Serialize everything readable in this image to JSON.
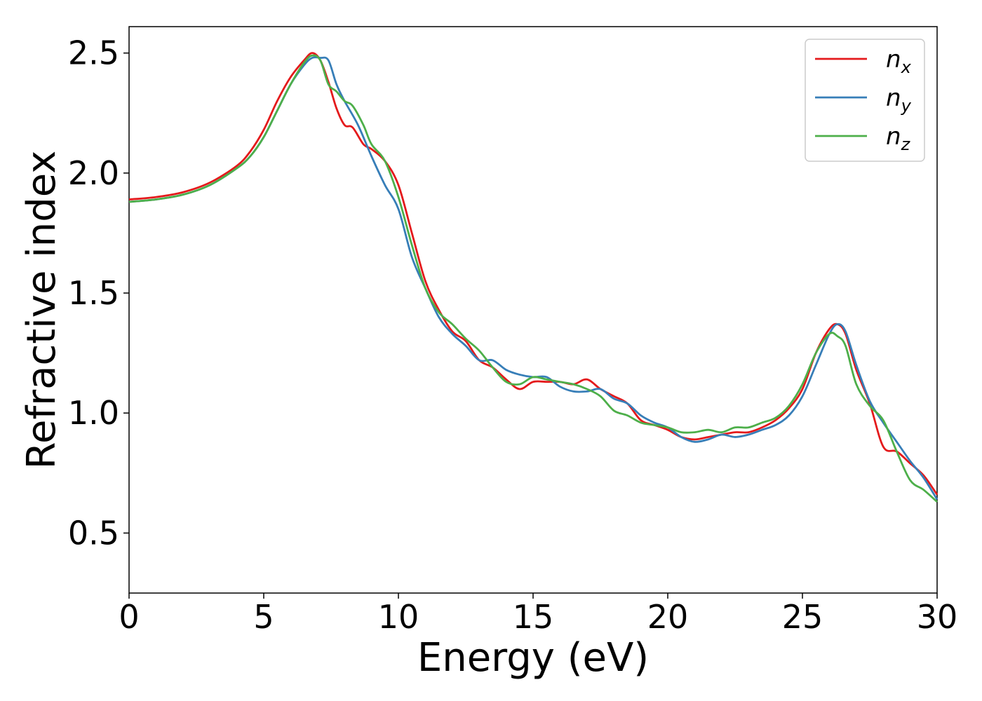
{
  "chart_data": {
    "type": "line",
    "title": "",
    "xlabel": "Energy (eV)",
    "ylabel": "Refractive index",
    "xlim": [
      0,
      30
    ],
    "ylim": [
      0.25,
      2.61
    ],
    "xticks": [
      0,
      5,
      10,
      15,
      20,
      25,
      30
    ],
    "xtick_labels": [
      "0",
      "5",
      "10",
      "15",
      "20",
      "25",
      "30"
    ],
    "yticks": [
      0.5,
      1.0,
      1.5,
      2.0,
      2.5
    ],
    "ytick_labels": [
      "0.5",
      "1.0",
      "1.5",
      "2.0",
      "2.5"
    ],
    "grid": false,
    "legend": {
      "placement": "top-right"
    },
    "series": [
      {
        "name": "n_x",
        "label_base": "n",
        "label_sub": "x",
        "color": "#e41a1c",
        "points": [
          [
            0,
            1.89
          ],
          [
            1,
            1.9
          ],
          [
            2,
            1.92
          ],
          [
            3,
            1.96
          ],
          [
            4,
            2.03
          ],
          [
            4.5,
            2.09
          ],
          [
            5,
            2.18
          ],
          [
            5.5,
            2.3
          ],
          [
            6,
            2.4
          ],
          [
            6.5,
            2.47
          ],
          [
            6.8,
            2.5
          ],
          [
            7.1,
            2.47
          ],
          [
            7.4,
            2.38
          ],
          [
            7.7,
            2.27
          ],
          [
            8,
            2.2
          ],
          [
            8.3,
            2.19
          ],
          [
            8.7,
            2.12
          ],
          [
            9,
            2.1
          ],
          [
            9.5,
            2.05
          ],
          [
            10,
            1.95
          ],
          [
            10.5,
            1.75
          ],
          [
            11,
            1.55
          ],
          [
            11.5,
            1.43
          ],
          [
            12,
            1.34
          ],
          [
            12.5,
            1.3
          ],
          [
            13,
            1.22
          ],
          [
            13.5,
            1.19
          ],
          [
            14,
            1.14
          ],
          [
            14.5,
            1.1
          ],
          [
            15,
            1.13
          ],
          [
            15.5,
            1.13
          ],
          [
            16,
            1.13
          ],
          [
            16.5,
            1.12
          ],
          [
            17,
            1.14
          ],
          [
            17.5,
            1.1
          ],
          [
            18,
            1.07
          ],
          [
            18.5,
            1.04
          ],
          [
            19,
            0.97
          ],
          [
            19.5,
            0.95
          ],
          [
            20,
            0.93
          ],
          [
            20.5,
            0.9
          ],
          [
            21,
            0.89
          ],
          [
            21.5,
            0.9
          ],
          [
            22,
            0.91
          ],
          [
            22.5,
            0.92
          ],
          [
            23,
            0.92
          ],
          [
            23.5,
            0.94
          ],
          [
            24,
            0.97
          ],
          [
            24.5,
            1.02
          ],
          [
            25,
            1.1
          ],
          [
            25.5,
            1.25
          ],
          [
            26,
            1.35
          ],
          [
            26.3,
            1.37
          ],
          [
            26.6,
            1.33
          ],
          [
            27,
            1.18
          ],
          [
            27.5,
            1.04
          ],
          [
            28,
            0.86
          ],
          [
            28.5,
            0.84
          ],
          [
            29,
            0.79
          ],
          [
            29.5,
            0.74
          ],
          [
            30,
            0.66
          ]
        ]
      },
      {
        "name": "n_y",
        "label_base": "n",
        "label_sub": "y",
        "color": "#377eb8",
        "points": [
          [
            0,
            1.88
          ],
          [
            1,
            1.89
          ],
          [
            2,
            1.91
          ],
          [
            3,
            1.95
          ],
          [
            4,
            2.02
          ],
          [
            4.5,
            2.07
          ],
          [
            5,
            2.15
          ],
          [
            5.5,
            2.26
          ],
          [
            6,
            2.37
          ],
          [
            6.5,
            2.45
          ],
          [
            6.8,
            2.48
          ],
          [
            7.1,
            2.48
          ],
          [
            7.4,
            2.47
          ],
          [
            7.7,
            2.37
          ],
          [
            8,
            2.3
          ],
          [
            8.5,
            2.2
          ],
          [
            9,
            2.07
          ],
          [
            9.5,
            1.95
          ],
          [
            10,
            1.85
          ],
          [
            10.5,
            1.65
          ],
          [
            11,
            1.52
          ],
          [
            11.5,
            1.4
          ],
          [
            12,
            1.33
          ],
          [
            12.5,
            1.28
          ],
          [
            13,
            1.22
          ],
          [
            13.5,
            1.22
          ],
          [
            14,
            1.18
          ],
          [
            14.5,
            1.16
          ],
          [
            15,
            1.15
          ],
          [
            15.5,
            1.15
          ],
          [
            16,
            1.11
          ],
          [
            16.5,
            1.09
          ],
          [
            17,
            1.09
          ],
          [
            17.5,
            1.1
          ],
          [
            18,
            1.06
          ],
          [
            18.5,
            1.04
          ],
          [
            19,
            0.99
          ],
          [
            19.5,
            0.96
          ],
          [
            20,
            0.94
          ],
          [
            20.5,
            0.9
          ],
          [
            21,
            0.88
          ],
          [
            21.5,
            0.89
          ],
          [
            22,
            0.91
          ],
          [
            22.5,
            0.9
          ],
          [
            23,
            0.91
          ],
          [
            23.5,
            0.93
          ],
          [
            24,
            0.95
          ],
          [
            24.5,
            0.99
          ],
          [
            25,
            1.07
          ],
          [
            25.5,
            1.2
          ],
          [
            26,
            1.33
          ],
          [
            26.3,
            1.37
          ],
          [
            26.6,
            1.34
          ],
          [
            27,
            1.2
          ],
          [
            27.5,
            1.05
          ],
          [
            28,
            0.96
          ],
          [
            28.5,
            0.88
          ],
          [
            29,
            0.8
          ],
          [
            29.5,
            0.73
          ],
          [
            30,
            0.64
          ]
        ]
      },
      {
        "name": "n_z",
        "label_base": "n",
        "label_sub": "z",
        "color": "#4daf4a",
        "points": [
          [
            0,
            1.88
          ],
          [
            1,
            1.89
          ],
          [
            2,
            1.91
          ],
          [
            3,
            1.95
          ],
          [
            4,
            2.02
          ],
          [
            4.5,
            2.07
          ],
          [
            5,
            2.15
          ],
          [
            5.5,
            2.26
          ],
          [
            6,
            2.37
          ],
          [
            6.5,
            2.46
          ],
          [
            6.8,
            2.49
          ],
          [
            7.1,
            2.47
          ],
          [
            7.4,
            2.37
          ],
          [
            7.7,
            2.34
          ],
          [
            8,
            2.3
          ],
          [
            8.3,
            2.28
          ],
          [
            8.7,
            2.2
          ],
          [
            9,
            2.12
          ],
          [
            9.5,
            2.05
          ],
          [
            10,
            1.9
          ],
          [
            10.5,
            1.7
          ],
          [
            11,
            1.52
          ],
          [
            11.5,
            1.42
          ],
          [
            12,
            1.37
          ],
          [
            12.5,
            1.31
          ],
          [
            13,
            1.26
          ],
          [
            13.5,
            1.19
          ],
          [
            14,
            1.13
          ],
          [
            14.5,
            1.12
          ],
          [
            15,
            1.15
          ],
          [
            15.5,
            1.14
          ],
          [
            16,
            1.13
          ],
          [
            16.5,
            1.12
          ],
          [
            17,
            1.1
          ],
          [
            17.5,
            1.07
          ],
          [
            18,
            1.01
          ],
          [
            18.5,
            0.99
          ],
          [
            19,
            0.96
          ],
          [
            19.5,
            0.95
          ],
          [
            20,
            0.94
          ],
          [
            20.5,
            0.92
          ],
          [
            21,
            0.92
          ],
          [
            21.5,
            0.93
          ],
          [
            22,
            0.92
          ],
          [
            22.5,
            0.94
          ],
          [
            23,
            0.94
          ],
          [
            23.5,
            0.96
          ],
          [
            24,
            0.98
          ],
          [
            24.5,
            1.03
          ],
          [
            25,
            1.12
          ],
          [
            25.5,
            1.25
          ],
          [
            26,
            1.33
          ],
          [
            26.3,
            1.32
          ],
          [
            26.6,
            1.28
          ],
          [
            27,
            1.12
          ],
          [
            27.5,
            1.03
          ],
          [
            28,
            0.97
          ],
          [
            28.5,
            0.84
          ],
          [
            29,
            0.72
          ],
          [
            29.5,
            0.68
          ],
          [
            30,
            0.63
          ]
        ]
      }
    ]
  }
}
